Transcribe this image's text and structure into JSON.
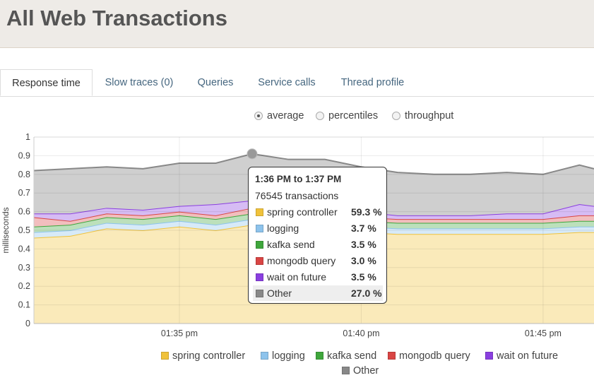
{
  "header": {
    "title": "All Web Transactions"
  },
  "tabs": [
    {
      "label": "Response time",
      "active": true
    },
    {
      "label": "Slow traces (0)",
      "active": false
    },
    {
      "label": "Queries",
      "active": false
    },
    {
      "label": "Service calls",
      "active": false
    },
    {
      "label": "Thread profile",
      "active": false
    }
  ],
  "view_options": [
    {
      "label": "average",
      "selected": true
    },
    {
      "label": "percentiles",
      "selected": false
    },
    {
      "label": "throughput",
      "selected": false
    }
  ],
  "tooltip": {
    "title": "1:36 PM to 1:37 PM",
    "transactions": "76545 transactions",
    "rows": [
      {
        "name": "spring controller",
        "value": "59.3 %",
        "color": "#f0c23b"
      },
      {
        "name": "logging",
        "value": "3.7 %",
        "color": "#8dc3ec"
      },
      {
        "name": "kafka send",
        "value": "3.5 %",
        "color": "#3fa63c"
      },
      {
        "name": "mongodb query",
        "value": "3.0 %",
        "color": "#d94544"
      },
      {
        "name": "wait on future",
        "value": "3.5 %",
        "color": "#8a3fe0"
      },
      {
        "name": "Other",
        "value": "27.0 %",
        "color": "#888888"
      }
    ]
  },
  "legend": [
    {
      "name": "spring controller",
      "color": "#f0c23b"
    },
    {
      "name": "logging",
      "color": "#8dc3ec"
    },
    {
      "name": "kafka send",
      "color": "#3fa63c"
    },
    {
      "name": "mongodb query",
      "color": "#d94544"
    },
    {
      "name": "wait on future",
      "color": "#8a3fe0"
    },
    {
      "name": "Other",
      "color": "#888888"
    }
  ],
  "chart_data": {
    "type": "area",
    "stacked": true,
    "ylabel": "milliseconds",
    "ylim": [
      0,
      1
    ],
    "yticks": [
      "0",
      "0.1",
      "0.2",
      "0.3",
      "0.4",
      "0.5",
      "0.6",
      "0.7",
      "0.8",
      "0.9",
      "1"
    ],
    "xlim_minutes": [
      1.0,
      16.4
    ],
    "xticks": [
      {
        "minute": 5,
        "label": "01:35 pm"
      },
      {
        "minute": 10,
        "label": "01:40 pm"
      },
      {
        "minute": 15,
        "label": "01:45 pm"
      }
    ],
    "x_minutes": [
      1,
      2,
      3,
      4,
      5,
      6,
      7,
      8,
      9,
      10,
      11,
      12,
      13,
      14,
      15,
      16,
      16.4
    ],
    "series": [
      {
        "name": "spring controller",
        "color": "#f0c23b",
        "values": [
          0.46,
          0.47,
          0.51,
          0.5,
          0.52,
          0.5,
          0.53,
          0.51,
          0.5,
          0.49,
          0.48,
          0.48,
          0.48,
          0.48,
          0.48,
          0.49,
          0.49
        ]
      },
      {
        "name": "logging",
        "color": "#8dc3ec",
        "values": [
          0.03,
          0.03,
          0.03,
          0.03,
          0.03,
          0.03,
          0.03,
          0.03,
          0.03,
          0.03,
          0.03,
          0.03,
          0.03,
          0.03,
          0.03,
          0.03,
          0.03
        ]
      },
      {
        "name": "kafka send",
        "color": "#3fa63c",
        "values": [
          0.03,
          0.03,
          0.03,
          0.03,
          0.03,
          0.03,
          0.03,
          0.03,
          0.03,
          0.03,
          0.03,
          0.03,
          0.03,
          0.03,
          0.03,
          0.03,
          0.03
        ]
      },
      {
        "name": "mongodb query",
        "color": "#d94544",
        "values": [
          0.05,
          0.02,
          0.02,
          0.02,
          0.02,
          0.02,
          0.03,
          0.02,
          0.02,
          0.02,
          0.02,
          0.02,
          0.02,
          0.02,
          0.02,
          0.03,
          0.03
        ]
      },
      {
        "name": "wait on future",
        "color": "#8a3fe0",
        "values": [
          0.02,
          0.04,
          0.03,
          0.03,
          0.03,
          0.06,
          0.04,
          0.03,
          0.03,
          0.03,
          0.02,
          0.02,
          0.02,
          0.03,
          0.03,
          0.06,
          0.05
        ]
      },
      {
        "name": "Other",
        "color": "#888888",
        "values": [
          0.23,
          0.24,
          0.22,
          0.22,
          0.23,
          0.22,
          0.25,
          0.26,
          0.27,
          0.24,
          0.23,
          0.22,
          0.22,
          0.22,
          0.21,
          0.21,
          0.2
        ]
      }
    ],
    "hover_point": {
      "minute": 7,
      "value": 0.91
    }
  }
}
